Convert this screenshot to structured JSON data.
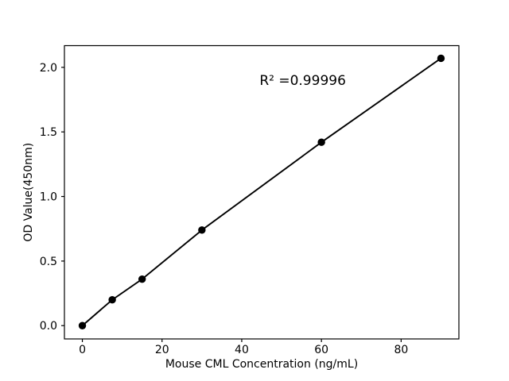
{
  "figure": {
    "background": "#ffffff",
    "foreground": "#000000"
  },
  "chart_data": {
    "type": "line",
    "title": "",
    "xlabel": "Mouse CML Concentration (ng/mL)",
    "ylabel": "OD Value(450nm)",
    "x": [
      0,
      7.5,
      15,
      30,
      60,
      90
    ],
    "y": [
      0.0,
      0.2,
      0.36,
      0.74,
      1.42,
      2.07
    ],
    "xlim": [
      -4.5,
      94.5
    ],
    "ylim": [
      -0.103,
      2.168
    ],
    "xticks": [
      0,
      20,
      40,
      60,
      80
    ],
    "xtick_labels": [
      "0",
      "20",
      "40",
      "60",
      "80"
    ],
    "yticks": [
      0.0,
      0.5,
      1.0,
      1.5,
      2.0
    ],
    "ytick_labels": [
      "0.0",
      "0.5",
      "1.0",
      "1.5",
      "2.0"
    ],
    "grid": false,
    "legend": null,
    "line_color": "#000000",
    "marker_color": "#000000",
    "annotation": {
      "text": "R² =0.99996",
      "x": 55.3,
      "y": 1.9
    }
  }
}
